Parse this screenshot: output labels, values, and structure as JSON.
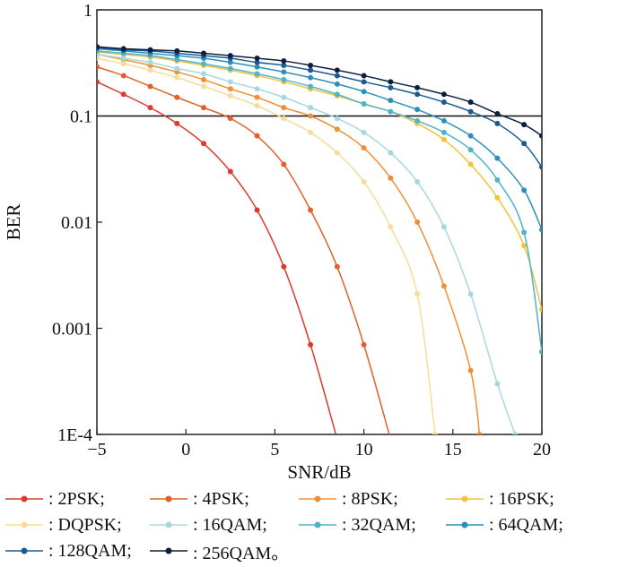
{
  "chart_data": {
    "type": "line",
    "xlabel": "SNR/dB",
    "ylabel": "BER",
    "x_axis": {
      "min": -5,
      "max": 20,
      "ticks": [
        -5,
        0,
        5,
        10,
        15,
        20
      ],
      "tick_labels": [
        "−5",
        "0",
        "5",
        "10",
        "15",
        "20"
      ]
    },
    "y_axis": {
      "scale": "log",
      "min": 0.0001,
      "max": 1,
      "ticks": [
        0.0001,
        0.001,
        0.01,
        0.1,
        1
      ],
      "tick_labels": [
        "1E-4",
        "0.001",
        "0.01",
        "0.1",
        "1"
      ]
    },
    "reference_line": {
      "y": 0.1
    },
    "grid": false,
    "legend_position": "bottom",
    "series": [
      {
        "name": "2PSK",
        "legend_label": ": 2PSK;",
        "color": "#dc3a2c",
        "x": [
          -5,
          -3.5,
          -2,
          -0.5,
          1,
          2.5,
          4,
          5.5,
          7,
          8.5
        ],
        "y": [
          0.21,
          0.16,
          0.12,
          0.085,
          0.055,
          0.03,
          0.013,
          0.0038,
          0.0007,
          9e-05
        ]
      },
      {
        "name": "4PSK",
        "legend_label": ": 4PSK;",
        "color": "#e2602c",
        "x": [
          -5,
          -3.5,
          -2,
          -0.5,
          1,
          2.5,
          4,
          5.5,
          7,
          8.5,
          10,
          11.5
        ],
        "y": [
          0.29,
          0.24,
          0.19,
          0.15,
          0.12,
          0.095,
          0.065,
          0.035,
          0.013,
          0.0038,
          0.0007,
          9e-05
        ]
      },
      {
        "name": "8PSK",
        "legend_label": ": 8PSK;",
        "color": "#ef9038",
        "x": [
          -5,
          -3.5,
          -2,
          -0.5,
          1,
          2.5,
          4,
          5.5,
          7,
          8.5,
          10,
          11.5,
          13,
          14.5,
          16,
          16.5
        ],
        "y": [
          0.38,
          0.34,
          0.3,
          0.26,
          0.22,
          0.18,
          0.15,
          0.12,
          0.1,
          0.075,
          0.05,
          0.026,
          0.01,
          0.0025,
          0.0004,
          0.0001
        ]
      },
      {
        "name": "16PSK",
        "legend_label": ": 16PSK;",
        "color": "#f2c23c",
        "x": [
          -5,
          -3.5,
          -2,
          -0.5,
          1,
          2.5,
          4,
          5.5,
          7,
          8.5,
          10,
          11.5,
          13,
          14.5,
          16,
          17.5,
          19,
          20
        ],
        "y": [
          0.4,
          0.38,
          0.36,
          0.33,
          0.3,
          0.27,
          0.24,
          0.21,
          0.18,
          0.155,
          0.13,
          0.11,
          0.085,
          0.06,
          0.035,
          0.017,
          0.006,
          0.0015
        ]
      },
      {
        "name": "DQPSK",
        "legend_label": ": DQPSK;",
        "color": "#f7dd9a",
        "x": [
          -5,
          -3.5,
          -2,
          -0.5,
          1,
          2.5,
          4,
          5.5,
          7,
          8.5,
          10,
          11.5,
          13,
          14
        ],
        "y": [
          0.35,
          0.31,
          0.27,
          0.23,
          0.19,
          0.155,
          0.125,
          0.095,
          0.07,
          0.045,
          0.024,
          0.009,
          0.0021,
          0.0001
        ]
      },
      {
        "name": "16QAM",
        "legend_label": ": 16QAM;",
        "color": "#a8d8df",
        "x": [
          -5,
          -3.5,
          -2,
          -0.5,
          1,
          2.5,
          4,
          5.5,
          7,
          8.5,
          10,
          11.5,
          13,
          14.5,
          16,
          17.5,
          18.5
        ],
        "y": [
          0.38,
          0.35,
          0.32,
          0.28,
          0.25,
          0.21,
          0.18,
          0.15,
          0.12,
          0.095,
          0.07,
          0.045,
          0.024,
          0.009,
          0.0021,
          0.0003,
          0.0001
        ]
      },
      {
        "name": "32QAM",
        "legend_label": ": 32QAM;",
        "color": "#4fb3c9",
        "x": [
          -5,
          -3.5,
          -2,
          -0.5,
          1,
          2.5,
          4,
          5.5,
          7,
          8.5,
          10,
          11.5,
          13,
          14.5,
          16,
          17.5,
          19,
          20
        ],
        "y": [
          0.41,
          0.39,
          0.37,
          0.34,
          0.31,
          0.28,
          0.25,
          0.22,
          0.19,
          0.16,
          0.13,
          0.11,
          0.09,
          0.07,
          0.048,
          0.025,
          0.008,
          0.0006
        ]
      },
      {
        "name": "64QAM",
        "legend_label": ": 64QAM;",
        "color": "#2c8fba",
        "x": [
          -5,
          -3.5,
          -2,
          -0.5,
          1,
          2.5,
          4,
          5.5,
          7,
          8.5,
          10,
          11.5,
          13,
          14.5,
          16,
          17.5,
          19,
          20
        ],
        "y": [
          0.43,
          0.41,
          0.39,
          0.37,
          0.35,
          0.32,
          0.29,
          0.26,
          0.23,
          0.2,
          0.17,
          0.14,
          0.115,
          0.09,
          0.065,
          0.04,
          0.02,
          0.0085
        ]
      },
      {
        "name": "128QAM",
        "legend_label": ": 128QAM;",
        "color": "#1b5a91",
        "x": [
          -5,
          -3.5,
          -2,
          -0.5,
          1,
          2.5,
          4,
          5.5,
          7,
          8.5,
          10,
          11.5,
          13,
          14.5,
          16,
          17.5,
          19,
          20
        ],
        "y": [
          0.44,
          0.42,
          0.41,
          0.39,
          0.37,
          0.35,
          0.32,
          0.3,
          0.27,
          0.24,
          0.21,
          0.185,
          0.16,
          0.135,
          0.11,
          0.085,
          0.055,
          0.033
        ]
      },
      {
        "name": "256QAM",
        "legend_label": ": 256QAM。",
        "color": "#0c1f3e",
        "x": [
          -5,
          -3.5,
          -2,
          -0.5,
          1,
          2.5,
          4,
          5.5,
          7,
          8.5,
          10,
          11.5,
          13,
          14.5,
          16,
          17.5,
          19,
          20
        ],
        "y": [
          0.45,
          0.43,
          0.42,
          0.41,
          0.39,
          0.37,
          0.35,
          0.33,
          0.3,
          0.27,
          0.24,
          0.21,
          0.185,
          0.16,
          0.135,
          0.105,
          0.083,
          0.065
        ]
      }
    ]
  }
}
